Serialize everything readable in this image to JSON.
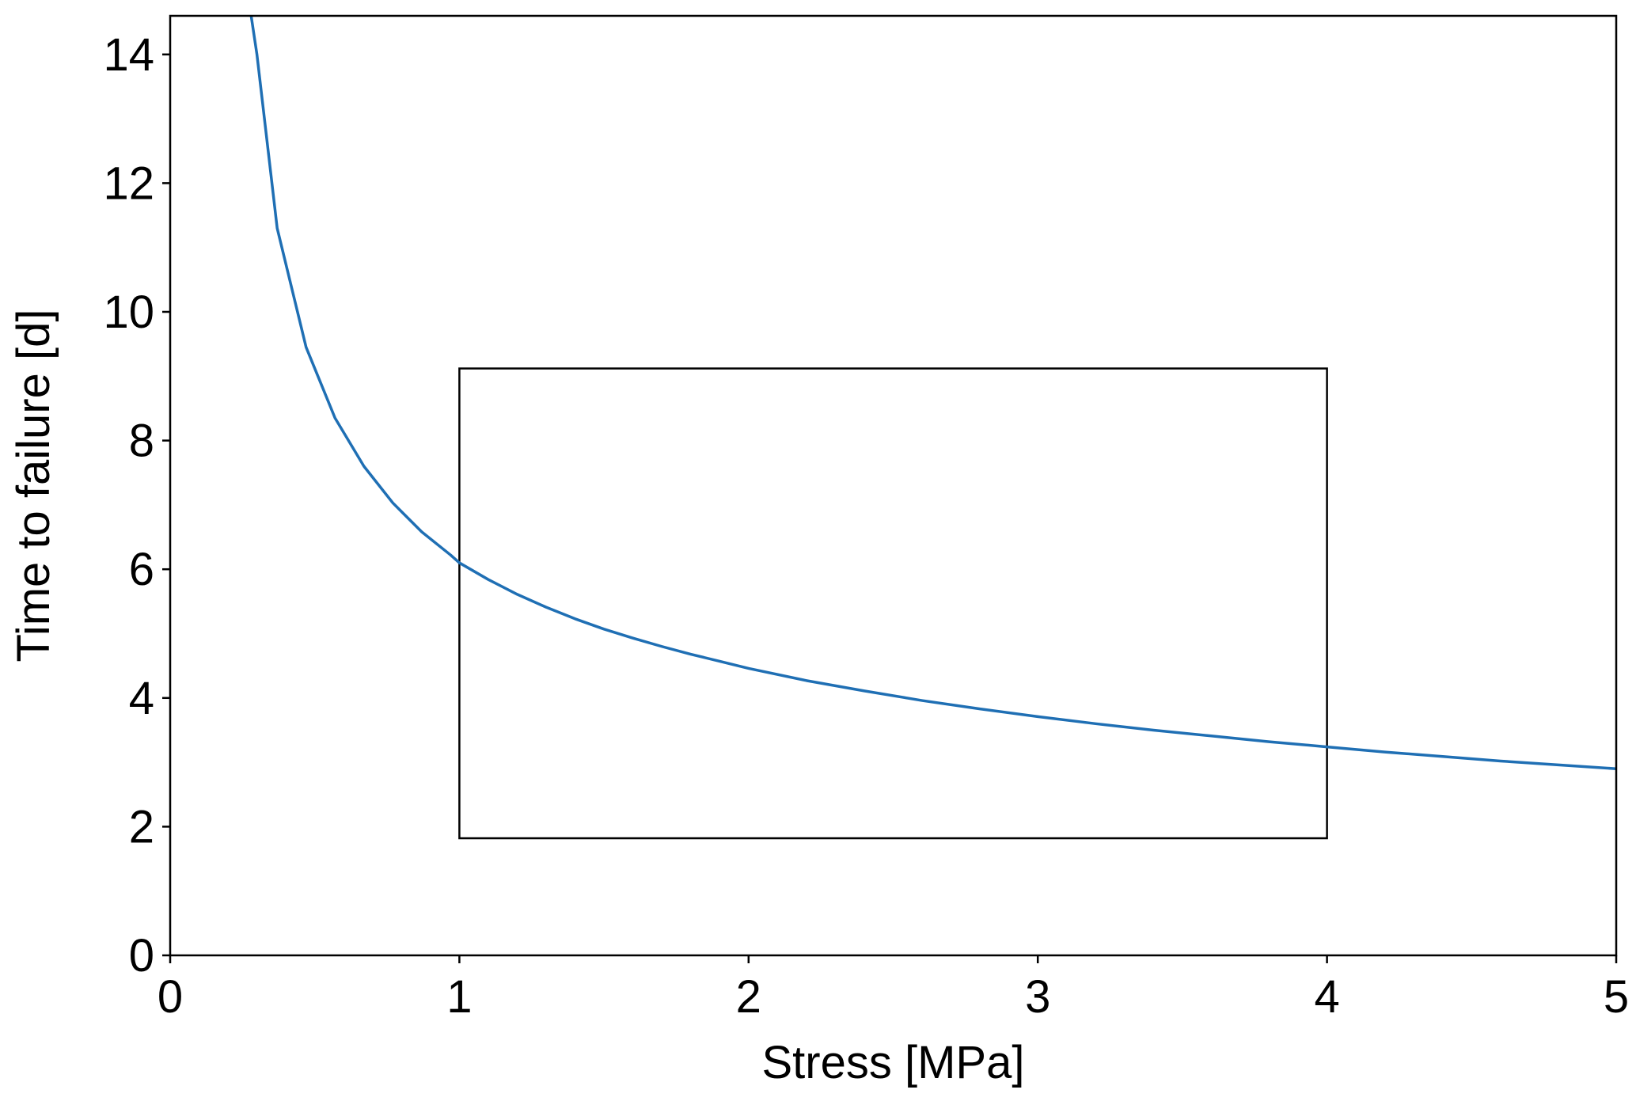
{
  "chart_data": {
    "type": "line",
    "title": "",
    "xlabel": "Stress [MPa]",
    "ylabel": "Time to failure [d]",
    "xlim": [
      0,
      5
    ],
    "ylim": [
      0,
      14.6
    ],
    "xticks": [
      "0",
      "1",
      "2",
      "3",
      "4",
      "5"
    ],
    "yticks": [
      "0",
      "2",
      "4",
      "6",
      "8",
      "10",
      "12",
      "14"
    ],
    "grid": false,
    "legend": "none",
    "series": [
      {
        "color": "#1f6fb4",
        "x": [
          0.28,
          0.3,
          0.37,
          0.47,
          0.57,
          0.67,
          0.77,
          0.87,
          0.97,
          1.0,
          1.1,
          1.2,
          1.3,
          1.4,
          1.5,
          1.6,
          1.7,
          1.8,
          1.9,
          2.0,
          2.2,
          2.4,
          2.6,
          2.8,
          3.0,
          3.2,
          3.4,
          3.6,
          3.8,
          4.0,
          4.2,
          4.4,
          4.6,
          4.8,
          5.0
        ],
        "y": [
          14.6,
          14.0,
          11.3,
          9.45,
          8.35,
          7.6,
          7.03,
          6.58,
          6.22,
          6.1,
          5.84,
          5.61,
          5.41,
          5.23,
          5.07,
          4.93,
          4.8,
          4.68,
          4.57,
          4.46,
          4.27,
          4.11,
          3.96,
          3.83,
          3.71,
          3.6,
          3.5,
          3.41,
          3.32,
          3.24,
          3.16,
          3.09,
          3.02,
          2.96,
          2.9
        ]
      }
    ],
    "annotations": [
      {
        "shape": "rectangle",
        "x_range": [
          1.0,
          4.0
        ],
        "y_range": [
          1.82,
          9.12
        ],
        "color": "#000000"
      }
    ]
  }
}
